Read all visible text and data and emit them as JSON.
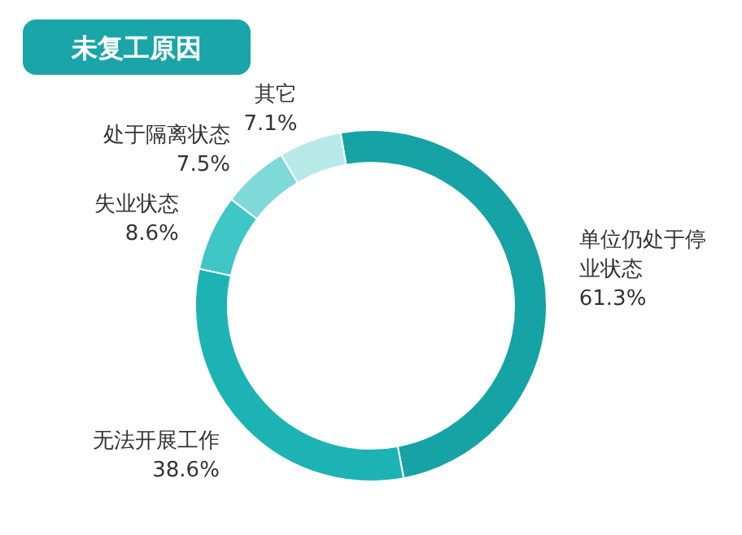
{
  "chart_data": {
    "type": "donut",
    "title": "未复工原因",
    "categories": [
      "单位仍处于停业状态",
      "无法开展工作",
      "失业状态",
      "处于隔离状态",
      "其它"
    ],
    "values": [
      61.3,
      38.6,
      8.6,
      7.5,
      7.1
    ],
    "colors": [
      "#16a3a5",
      "#1db3b4",
      "#3fc6c7",
      "#80d9d9",
      "#b8e9e9"
    ],
    "value_labels": [
      "61.3%",
      "38.6%",
      "8.6%",
      "7.5%",
      "7.1%"
    ]
  }
}
